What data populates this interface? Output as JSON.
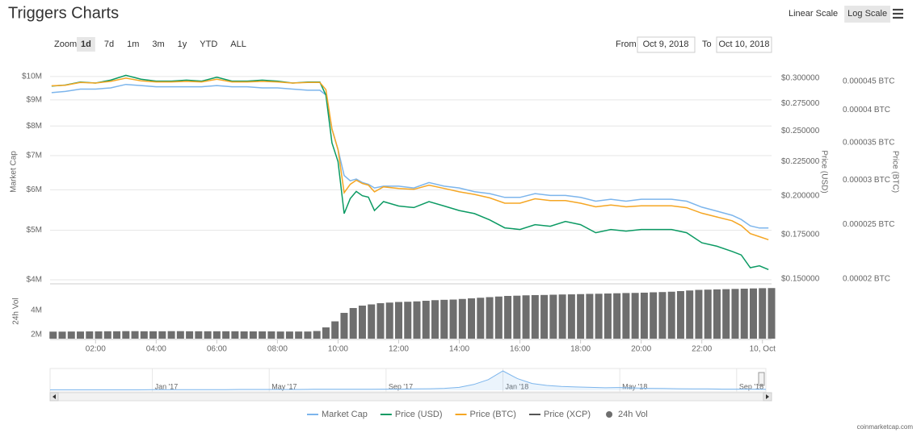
{
  "chart_data": [
    {
      "type": "line",
      "title": "Triggers Charts",
      "log_scale": true,
      "grid": true,
      "x": [
        0.55,
        1,
        1.5,
        2,
        2.5,
        3,
        3.5,
        4,
        4.5,
        5,
        5.5,
        6,
        6.5,
        7,
        7.5,
        8,
        8.5,
        9,
        9.4,
        9.6,
        9.8,
        10,
        10.2,
        10.4,
        10.6,
        10.8,
        11,
        11.2,
        11.5,
        12,
        12.5,
        13,
        13.5,
        14,
        14.5,
        15,
        15.5,
        16,
        16.5,
        17,
        17.5,
        18,
        18.5,
        19,
        19.5,
        20,
        20.5,
        21,
        21.5,
        22,
        22.5,
        23,
        23.3,
        23.6,
        23.9,
        24.2
      ],
      "xlim": [
        0.5,
        24.3
      ],
      "xticks": [
        {
          "value": 2,
          "label": "02:00"
        },
        {
          "value": 4,
          "label": "04:00"
        },
        {
          "value": 6,
          "label": "06:00"
        },
        {
          "value": 8,
          "label": "08:00"
        },
        {
          "value": 10,
          "label": "10:00"
        },
        {
          "value": 12,
          "label": "12:00"
        },
        {
          "value": 14,
          "label": "14:00"
        },
        {
          "value": 16,
          "label": "16:00"
        },
        {
          "value": 18,
          "label": "18:00"
        },
        {
          "value": 20,
          "label": "20:00"
        },
        {
          "value": 22,
          "label": "22:00"
        },
        {
          "value": 24,
          "label": "10, Oct"
        }
      ],
      "ylabel": "Market Cap",
      "ylim": [
        3985000,
        10180000
      ],
      "yticks": [
        {
          "value": 4000000,
          "label": "$4M"
        },
        {
          "value": 5000000,
          "label": "$5M"
        },
        {
          "value": 6000000,
          "label": "$6M"
        },
        {
          "value": 7000000,
          "label": "$7M"
        },
        {
          "value": 8000000,
          "label": "$8M"
        },
        {
          "value": 9000000,
          "label": "$9M"
        },
        {
          "value": 10000000,
          "label": "$10M"
        }
      ],
      "y2label": "Price (USD)",
      "y2lim": [
        0.1492,
        0.3059
      ],
      "y2ticks": [
        {
          "value": 0.15,
          "label": "$0.150000"
        },
        {
          "value": 0.175,
          "label": "$0.175000"
        },
        {
          "value": 0.2,
          "label": "$0.200000"
        },
        {
          "value": 0.225,
          "label": "$0.225000"
        },
        {
          "value": 0.25,
          "label": "$0.250000"
        },
        {
          "value": 0.275,
          "label": "$0.275000"
        },
        {
          "value": 0.3,
          "label": "$0.300000"
        }
      ],
      "y3label": "Price (BTC)",
      "y3lim": [
        1.987e-05,
        4.666e-05
      ],
      "y3ticks": [
        {
          "value": 2e-05,
          "label": "0.00002 BTC"
        },
        {
          "value": 2.5e-05,
          "label": "0.000025 BTC"
        },
        {
          "value": 3e-05,
          "label": "0.00003 BTC"
        },
        {
          "value": 3.5e-05,
          "label": "0.000035 BTC"
        },
        {
          "value": 4e-05,
          "label": "0.00004 BTC"
        },
        {
          "value": 4.5e-05,
          "label": "0.000045 BTC"
        }
      ],
      "series": [
        {
          "name": "Market Cap",
          "color": "#7cb5ec",
          "axis": "y",
          "values": [
            9300000,
            9350000,
            9450000,
            9450000,
            9500000,
            9650000,
            9600000,
            9550000,
            9550000,
            9550000,
            9550000,
            9600000,
            9550000,
            9550000,
            9500000,
            9500000,
            9450000,
            9400000,
            9400000,
            9200000,
            7900000,
            7200000,
            6400000,
            6250000,
            6300000,
            6200000,
            6150000,
            6050000,
            6100000,
            6100000,
            6050000,
            6200000,
            6100000,
            6050000,
            5950000,
            5900000,
            5800000,
            5800000,
            5900000,
            5850000,
            5850000,
            5800000,
            5700000,
            5750000,
            5700000,
            5750000,
            5750000,
            5750000,
            5700000,
            5550000,
            5450000,
            5350000,
            5250000,
            5100000,
            5050000,
            5050000
          ]
        },
        {
          "name": "Price (USD)",
          "color": "#0b9a63",
          "axis": "y2",
          "values": [
            0.292,
            0.293,
            0.296,
            0.295,
            0.298,
            0.303,
            0.299,
            0.297,
            0.297,
            0.298,
            0.297,
            0.301,
            0.297,
            0.297,
            0.298,
            0.297,
            0.295,
            0.296,
            0.296,
            0.283,
            0.24,
            0.225,
            0.188,
            0.198,
            0.203,
            0.2,
            0.199,
            0.19,
            0.196,
            0.193,
            0.192,
            0.196,
            0.193,
            0.19,
            0.188,
            0.184,
            0.179,
            0.178,
            0.181,
            0.18,
            0.183,
            0.181,
            0.176,
            0.178,
            0.177,
            0.178,
            0.178,
            0.178,
            0.176,
            0.17,
            0.168,
            0.165,
            0.163,
            0.156,
            0.157,
            0.155
          ]
        },
        {
          "name": "Price (BTC)",
          "color": "#f5a623",
          "axis": "y3",
          "values": [
            4.42e-05,
            4.43e-05,
            4.48e-05,
            4.47e-05,
            4.5e-05,
            4.56e-05,
            4.51e-05,
            4.49e-05,
            4.49e-05,
            4.5e-05,
            4.49e-05,
            4.54e-05,
            4.49e-05,
            4.49e-05,
            4.5e-05,
            4.49e-05,
            4.47e-05,
            4.48e-05,
            4.48e-05,
            4.35e-05,
            3.7e-05,
            3.4e-05,
            2.85e-05,
            2.95e-05,
            3e-05,
            2.96e-05,
            2.94e-05,
            2.86e-05,
            2.92e-05,
            2.9e-05,
            2.89e-05,
            2.94e-05,
            2.9e-05,
            2.86e-05,
            2.83e-05,
            2.79e-05,
            2.73e-05,
            2.73e-05,
            2.78e-05,
            2.76e-05,
            2.76e-05,
            2.73e-05,
            2.69e-05,
            2.71e-05,
            2.69e-05,
            2.7e-05,
            2.7e-05,
            2.7e-05,
            2.68e-05,
            2.62e-05,
            2.58e-05,
            2.54e-05,
            2.49e-05,
            2.41e-05,
            2.38e-05,
            2.35e-05
          ]
        },
        {
          "name": "Price (XCP)",
          "color": "#555555",
          "axis": "y",
          "values": [
            null,
            null,
            null,
            null,
            null,
            null,
            null,
            null,
            null,
            null,
            null,
            null,
            null,
            null,
            null,
            null,
            null,
            null,
            null,
            null,
            null,
            null,
            null,
            null,
            null,
            null,
            null,
            null,
            null,
            null,
            null,
            null,
            null,
            null,
            null,
            null,
            null,
            null,
            null,
            null,
            null,
            null,
            null,
            null,
            null,
            null,
            null,
            null,
            null,
            null,
            null,
            null,
            null,
            null,
            null,
            null
          ]
        }
      ]
    },
    {
      "type": "bar",
      "ylabel": "24h Vol",
      "ylim": [
        1670000,
        6000000
      ],
      "yticks": [
        {
          "value": 2000000,
          "label": "2M"
        },
        {
          "value": 4000000,
          "label": "4M"
        }
      ],
      "x": [
        0.6,
        0.9,
        1.2,
        1.5,
        1.8,
        2.1,
        2.4,
        2.7,
        3,
        3.3,
        3.6,
        3.9,
        4.2,
        4.5,
        4.8,
        5.1,
        5.4,
        5.7,
        6,
        6.3,
        6.6,
        6.9,
        7.2,
        7.5,
        7.8,
        8.1,
        8.4,
        8.7,
        9,
        9.3,
        9.6,
        9.9,
        10.2,
        10.5,
        10.8,
        11.1,
        11.4,
        11.7,
        12,
        12.3,
        12.6,
        12.9,
        13.2,
        13.5,
        13.8,
        14.1,
        14.4,
        14.7,
        15,
        15.3,
        15.6,
        15.9,
        16.2,
        16.5,
        16.8,
        17.1,
        17.4,
        17.7,
        18,
        18.3,
        18.6,
        18.9,
        19.2,
        19.5,
        19.8,
        20.1,
        20.4,
        20.7,
        21,
        21.3,
        21.6,
        21.9,
        22.2,
        22.5,
        22.8,
        23.1,
        23.4,
        23.7,
        24,
        24.3
      ],
      "series": [
        {
          "name": "24h Vol",
          "color": "#6e6e6e",
          "values": [
            2250000,
            2250000,
            2260000,
            2260000,
            2270000,
            2270000,
            2280000,
            2280000,
            2290000,
            2290000,
            2280000,
            2280000,
            2280000,
            2290000,
            2290000,
            2280000,
            2280000,
            2280000,
            2280000,
            2280000,
            2280000,
            2270000,
            2270000,
            2270000,
            2270000,
            2260000,
            2260000,
            2260000,
            2260000,
            2300000,
            2600000,
            3100000,
            3800000,
            4200000,
            4400000,
            4500000,
            4600000,
            4650000,
            4700000,
            4720000,
            4750000,
            4800000,
            4850000,
            4880000,
            4900000,
            4950000,
            5000000,
            5050000,
            5100000,
            5150000,
            5200000,
            5220000,
            5250000,
            5270000,
            5280000,
            5300000,
            5320000,
            5330000,
            5350000,
            5370000,
            5380000,
            5400000,
            5420000,
            5440000,
            5450000,
            5470000,
            5500000,
            5520000,
            5550000,
            5600000,
            5650000,
            5700000,
            5720000,
            5740000,
            5760000,
            5780000,
            5800000,
            5820000,
            5840000,
            5850000
          ]
        }
      ]
    },
    {
      "type": "area",
      "color": "#7cb5ec",
      "categories": [
        null,
        null,
        null,
        null,
        null,
        null,
        null,
        "Jan '17",
        null,
        null,
        null,
        null,
        null,
        null,
        null,
        "May '17",
        null,
        null,
        null,
        null,
        null,
        null,
        null,
        "Sep '17",
        null,
        null,
        null,
        null,
        null,
        null,
        null,
        "Jan '18",
        null,
        null,
        null,
        null,
        null,
        null,
        null,
        "May '18",
        null,
        null,
        null,
        null,
        null,
        null,
        null,
        "Sep '18",
        null,
        null
      ],
      "values": [
        0.02,
        0.02,
        0.02,
        0.02,
        0.02,
        0.02,
        0.02,
        0.03,
        0.03,
        0.03,
        0.03,
        0.03,
        0.03,
        0.04,
        0.04,
        0.04,
        0.04,
        0.04,
        0.05,
        0.05,
        0.05,
        0.05,
        0.05,
        0.06,
        0.06,
        0.07,
        0.08,
        0.1,
        0.15,
        0.3,
        0.55,
        1.0,
        0.6,
        0.35,
        0.25,
        0.2,
        0.17,
        0.15,
        0.13,
        0.14,
        0.12,
        0.1,
        0.09,
        0.08,
        0.07,
        0.07,
        0.06,
        0.06,
        0.06,
        0.05
      ]
    }
  ],
  "toolbar": {
    "scale_buttons": [
      "Linear Scale",
      "Log Scale"
    ],
    "active_scale": 1,
    "zoom_label": "Zoom",
    "zoom_buttons": [
      "1d",
      "7d",
      "1m",
      "3m",
      "1y",
      "YTD",
      "ALL"
    ],
    "active_zoom": 0,
    "from_label": "From",
    "from": "Oct 9, 2018",
    "to_label": "To",
    "to": "Oct 10, 2018"
  },
  "credit": "coinmarketcap.com"
}
